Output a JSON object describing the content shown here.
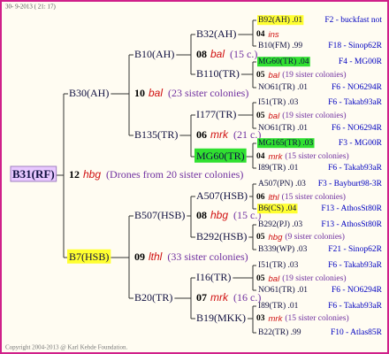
{
  "header": {
    "timestamp": "30- 9-2013 ( 21: 17)"
  },
  "nodes": [
    "B31(RF)",
    "B30(AH)",
    "B7(HSB)",
    "B10(AH)",
    "B135(TR)",
    "B507(HSB)",
    "B20(TR)",
    "B32(AH)",
    "B110(TR)",
    "I177(TR)",
    "MG60(TR)",
    "A507(HSB)",
    "B292(HSB)",
    "I16(TR)",
    "B19(MKK)"
  ],
  "matings": [
    {
      "number": "12",
      "race": "hbg",
      "note": "(Drones from 20 sister colonies)"
    },
    {
      "number": "10",
      "race": "bal",
      "note": "(23 sister colonies)"
    },
    {
      "number": "09",
      "race": "lthl",
      "note": "(33 sister colonies)"
    },
    {
      "number": "08",
      "race": "bal",
      "note": "(15 c.)"
    },
    {
      "number": "06",
      "race": "mrk",
      "note": "(21 c.)"
    },
    {
      "number": "08",
      "race": "hbg",
      "note": "(15 c.)"
    },
    {
      "number": "07",
      "race": "mrk",
      "note": "(16 c.)"
    },
    {
      "number": "04",
      "race": "ins"
    },
    {
      "number": "05",
      "race": "bal",
      "note": "(19 sister colonies)"
    },
    {
      "number": "05",
      "race": "bal",
      "note": "(19 sister colonies)"
    },
    {
      "number": "04",
      "race": "mrk",
      "note": "(15 sister colonies)"
    },
    {
      "number": "06",
      "race": "lthl",
      "note": "(15 sister colonies)"
    },
    {
      "number": "05",
      "race": "hbg",
      "note": "(9 sister colonies)"
    },
    {
      "number": "05",
      "race": "bal",
      "note": "(19 sister colonies)"
    },
    {
      "number": "03",
      "race": "mrk",
      "note": "(15 sister colonies)"
    }
  ],
  "ancestors": [
    {
      "name": "B92(AH) .01",
      "origin": "F2 - buckfast not"
    },
    {
      "name": "B10(FM) .99",
      "origin": "F18 - Sinop62R"
    },
    {
      "name": "MG60(TR) .04",
      "origin": "F4 - MG00R"
    },
    {
      "name": "NO61(TR) .01",
      "origin": "F6 - NO6294R"
    },
    {
      "name": "I51(TR) .03",
      "origin": "F6 - Takab93aR"
    },
    {
      "name": "NO61(TR) .01",
      "origin": "F6 - NO6294R"
    },
    {
      "name": "MG165(TR) .03",
      "origin": "F3 - MG00R"
    },
    {
      "name": "I89(TR) .01",
      "origin": "F6 - Takab93aR"
    },
    {
      "name": "A507(PN) .03",
      "origin": "F3 - Bayburt98-3R"
    },
    {
      "name": "B6(CS) .04",
      "origin": "F13 - AthosSt80R"
    },
    {
      "name": "B292(PJ) .03",
      "origin": "F13 - AthosSt80R"
    },
    {
      "name": "B339(WP) .03",
      "origin": "F21 - Sinop62R"
    },
    {
      "name": "I51(TR) .03",
      "origin": "F6 - Takab93aR"
    },
    {
      "name": "NO61(TR) .01",
      "origin": "F6 - NO6294R"
    },
    {
      "name": "I89(TR) .01",
      "origin": "F6 - Takab93aR"
    },
    {
      "name": "B22(TR) .99",
      "origin": "F10 - Atlas85R"
    }
  ],
  "footer": {
    "copyright": "Copyright 2004-2013 @ Karl Kehde Foundation."
  }
}
